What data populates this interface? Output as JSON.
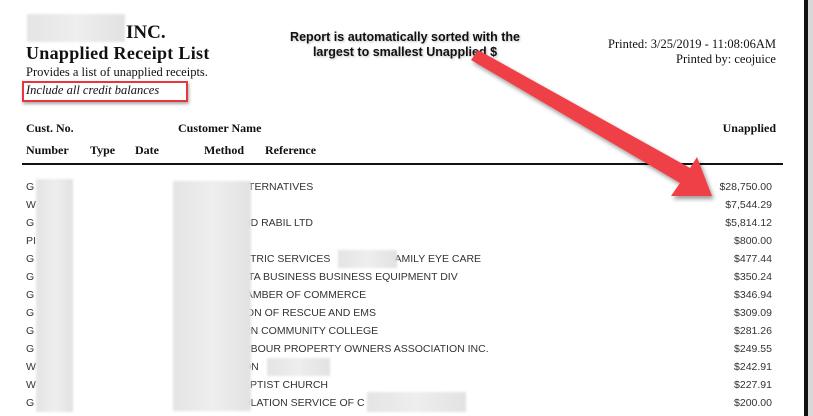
{
  "report": {
    "company_suffix": "INC.",
    "title": "Unapplied Receipt List",
    "subtitle": "Provides a list of unapplied receipts.",
    "filter": "Include all credit balances",
    "printed": "Printed: 3/25/2019 - 11:08:06AM",
    "printed_by": "Printed by: ceojuice"
  },
  "annotation": {
    "line1": "Report is automatically sorted with the",
    "line2": "largest to smallest Unapplied $",
    "color": "#e8363e"
  },
  "columns": {
    "cust_no": "Cust. No.",
    "customer_name": "Customer Name",
    "unapplied": "Unapplied",
    "number": "Number",
    "type": "Type",
    "date": "Date",
    "method": "Method",
    "reference": "Reference"
  },
  "rows": [
    {
      "cust": "G",
      "name": "LTERNATIVES",
      "amount": "$28,750.00"
    },
    {
      "cust": "W",
      "name": ")",
      "amount": "$7,544.29"
    },
    {
      "cust": "G",
      "name": "ND RABIL LTD",
      "amount": "$5,814.12"
    },
    {
      "cust": "PI",
      "name": "",
      "amount": "$800.00"
    },
    {
      "cust": "G",
      "name": "ETRIC SERVICES                    FAMILY EYE CARE",
      "amount": "$477.44"
    },
    {
      "cust": "G",
      "name": "LTA BUSINESS BUSINESS EQUIPMENT DIV",
      "amount": "$350.24"
    },
    {
      "cust": "G",
      "name": "IAMBER OF COMMERCE",
      "amount": "$346.94"
    },
    {
      "cust": "G",
      "name": "ION OF RESCUE AND EMS",
      "amount": "$309.09"
    },
    {
      "cust": "G",
      "name": "RN COMMUNITY COLLEGE",
      "amount": "$281.26"
    },
    {
      "cust": "G",
      "name": "RBOUR PROPERTY OWNERS ASSOCIATION INC.",
      "amount": "$249.55"
    },
    {
      "cust": "W",
      "name": "ON",
      "amount": "$242.91"
    },
    {
      "cust": "W",
      "name": "APTIST CHURCH",
      "amount": "$227.91"
    },
    {
      "cust": "G",
      "name": "ULATION SERVICE OF C",
      "amount": "$200.00"
    }
  ]
}
